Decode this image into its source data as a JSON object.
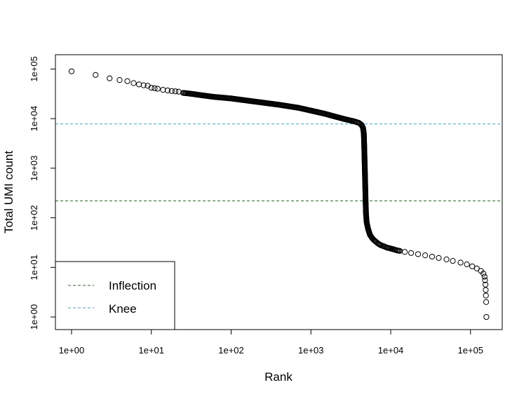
{
  "chart_data": {
    "type": "scatter",
    "xlabel": "Rank",
    "ylabel": "Total UMI count",
    "x_scale": "log10",
    "y_scale": "log10",
    "xlim": [
      1,
      160000
    ],
    "ylim": [
      0.7,
      160000
    ],
    "x_ticks": [
      "1e+00",
      "1e+01",
      "1e+02",
      "1e+03",
      "1e+04",
      "1e+05"
    ],
    "x_tick_values": [
      1,
      10,
      100,
      1000,
      10000,
      100000
    ],
    "y_ticks": [
      "1e+00",
      "1e+01",
      "1e+02",
      "1e+03",
      "1e+04",
      "1e+05"
    ],
    "y_tick_values": [
      1,
      10,
      100,
      1000,
      10000,
      100000
    ],
    "grid": false,
    "legend_position": "bottom-left",
    "lines": [
      {
        "name": "Inflection",
        "y": 220,
        "color": "#2e6b2e",
        "style": "dashed"
      },
      {
        "name": "Knee",
        "y": 7800,
        "color": "#4aa3c4",
        "style": "dashed"
      }
    ],
    "series": [
      {
        "marker": "open-circle",
        "color": "#000000",
        "points": [
          [
            1,
            90000
          ],
          [
            2,
            76000
          ],
          [
            3,
            65000
          ],
          [
            4,
            60000
          ],
          [
            5,
            57000
          ],
          [
            6,
            52000
          ],
          [
            7,
            49000
          ],
          [
            8,
            47000
          ],
          [
            9,
            46000
          ],
          [
            10,
            42000
          ],
          [
            11,
            41000
          ],
          [
            12,
            40000
          ],
          [
            14,
            38000
          ],
          [
            16,
            37000
          ],
          [
            18,
            36000
          ],
          [
            20,
            35500
          ],
          [
            22,
            35000
          ],
          [
            25,
            33000
          ],
          [
            30,
            32000
          ],
          [
            40,
            30000
          ],
          [
            60,
            27500
          ],
          [
            100,
            25500
          ],
          [
            200,
            22000
          ],
          [
            400,
            19000
          ],
          [
            700,
            16500
          ],
          [
            1000,
            14500
          ],
          [
            1500,
            12500
          ],
          [
            2000,
            11000
          ],
          [
            2500,
            10000
          ],
          [
            3000,
            9300
          ],
          [
            3500,
            8800
          ],
          [
            4000,
            8200
          ],
          [
            4300,
            7500
          ],
          [
            4500,
            6500
          ],
          [
            4600,
            5000
          ],
          [
            4650,
            3000
          ],
          [
            4700,
            1500
          ],
          [
            4750,
            800
          ],
          [
            4800,
            400
          ],
          [
            4850,
            200
          ],
          [
            4900,
            120
          ],
          [
            5000,
            80
          ],
          [
            5200,
            60
          ],
          [
            5500,
            45
          ],
          [
            6000,
            37
          ],
          [
            6500,
            33
          ],
          [
            7000,
            30
          ],
          [
            7500,
            28
          ],
          [
            8000,
            27
          ],
          [
            8500,
            26
          ],
          [
            9000,
            25
          ],
          [
            10000,
            24
          ],
          [
            11000,
            23
          ],
          [
            12000,
            22
          ],
          [
            13000,
            21.5
          ],
          [
            15000,
            20.5
          ],
          [
            18000,
            19.5
          ],
          [
            22000,
            18.5
          ],
          [
            27000,
            17.5
          ],
          [
            33000,
            16.5
          ],
          [
            40000,
            15.5
          ],
          [
            50000,
            14.5
          ],
          [
            60000,
            13.5
          ],
          [
            75000,
            12.5
          ],
          [
            90000,
            11.5
          ],
          [
            105000,
            10.5
          ],
          [
            120000,
            9.5
          ],
          [
            135000,
            8.5
          ],
          [
            145000,
            7.5
          ],
          [
            150000,
            6.5
          ],
          [
            152000,
            5.5
          ],
          [
            154000,
            4.5
          ],
          [
            155000,
            3.5
          ],
          [
            156000,
            2.7
          ],
          [
            157000,
            2
          ],
          [
            158000,
            1
          ]
        ]
      }
    ]
  }
}
